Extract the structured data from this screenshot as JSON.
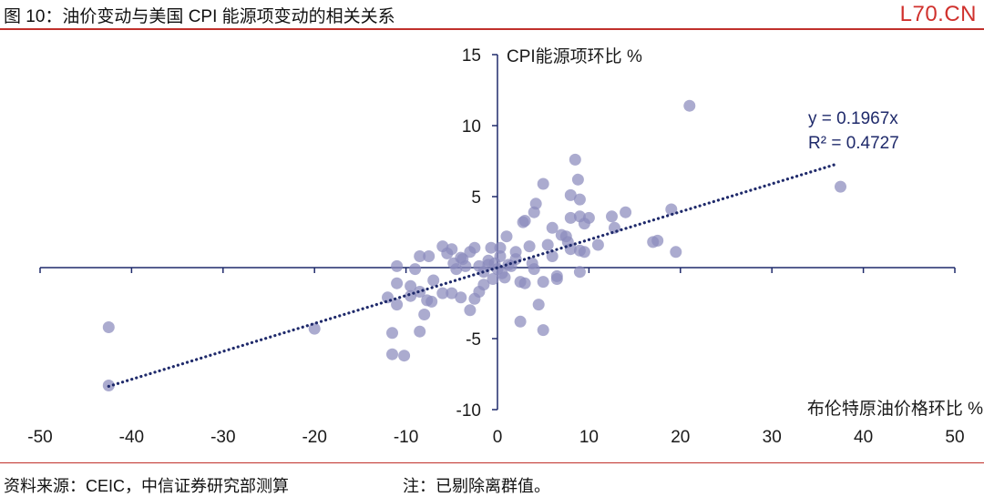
{
  "header": {
    "title": "图 10：油价变动与美国 CPI 能源项变动的相关关系",
    "logo": "L70.CN"
  },
  "footer": {
    "source": "资料来源：CEIC，中信证券研究部测算",
    "note": "注：已剔除离群值。"
  },
  "colors": {
    "point": "#8b8bbd",
    "trend": "#1f2a6b",
    "axis": "#1f2a6b",
    "rule": "#c0302b"
  },
  "chart_data": {
    "type": "scatter",
    "xlabel": "布伦特原油价格环比 %",
    "ylabel": "CPI能源项环比 %",
    "xlim": [
      -50,
      50
    ],
    "ylim": [
      -10,
      15
    ],
    "xticks": [
      "-50",
      "-40",
      "-30",
      "-20",
      "-10",
      "0",
      "10",
      "20",
      "30",
      "40",
      "50"
    ],
    "yticks": [
      "-10",
      "-5",
      "5",
      "10",
      "15"
    ],
    "trendline": {
      "equation": "y = 0.1967x",
      "r2": "R² = 0.4727",
      "slope": 0.1967,
      "x_range": [
        -42.5,
        37
      ]
    },
    "points": [
      [
        -42.5,
        -4.2
      ],
      [
        -42.5,
        -8.3
      ],
      [
        -20,
        -4.3
      ],
      [
        -11.5,
        -4.6
      ],
      [
        -11.5,
        -6.1
      ],
      [
        -10.2,
        -6.2
      ],
      [
        -8.5,
        -4.5
      ],
      [
        -8,
        -3.3
      ],
      [
        -12,
        -2.1
      ],
      [
        -11,
        -2.6
      ],
      [
        -9.5,
        -2
      ],
      [
        -8.5,
        -1.7
      ],
      [
        -7.7,
        -2.3
      ],
      [
        -7.2,
        -2.4
      ],
      [
        -11,
        -1.1
      ],
      [
        -9.5,
        -1.3
      ],
      [
        -7,
        -0.9
      ],
      [
        -6,
        -1.8
      ],
      [
        -5,
        -1.8
      ],
      [
        -4,
        -2.1
      ],
      [
        -3,
        -3
      ],
      [
        -2.5,
        -2.2
      ],
      [
        -2,
        -1.7
      ],
      [
        -1.5,
        -1.2
      ],
      [
        -11,
        0.1
      ],
      [
        -9,
        -0.1
      ],
      [
        -8.5,
        0.8
      ],
      [
        -7.5,
        0.8
      ],
      [
        -6,
        1.5
      ],
      [
        -5.5,
        1
      ],
      [
        -5,
        1.3
      ],
      [
        -4.8,
        0.3
      ],
      [
        -4.5,
        -0.1
      ],
      [
        -4,
        0.7
      ],
      [
        -3.5,
        0.1
      ],
      [
        -3,
        1.1
      ],
      [
        -2.5,
        1.4
      ],
      [
        -2,
        0.1
      ],
      [
        -1.5,
        -0.3
      ],
      [
        -1,
        0.2
      ],
      [
        -0.7,
        1.4
      ],
      [
        -0.3,
        0.3
      ],
      [
        0,
        -0.1
      ],
      [
        0.5,
        -0.4
      ],
      [
        0.8,
        -0.7
      ],
      [
        1.2,
        0.2
      ],
      [
        -0.5,
        -0.8
      ],
      [
        0.3,
        0.8
      ],
      [
        0.3,
        1.4
      ],
      [
        1.5,
        0.1
      ],
      [
        2,
        0.6
      ],
      [
        2.5,
        -1
      ],
      [
        2.8,
        3.2
      ],
      [
        3,
        -1.1
      ],
      [
        3,
        3.3
      ],
      [
        3.5,
        1.5
      ],
      [
        3.8,
        0.3
      ],
      [
        4,
        -0.1
      ],
      [
        4,
        3.9
      ],
      [
        4.5,
        -2.6
      ],
      [
        2.5,
        -3.8
      ],
      [
        5,
        -4.4
      ],
      [
        5,
        -1
      ],
      [
        5.5,
        1.6
      ],
      [
        5,
        5.9
      ],
      [
        6,
        2.8
      ],
      [
        6.5,
        -0.6
      ],
      [
        6.5,
        -0.8
      ],
      [
        7,
        2.3
      ],
      [
        7.5,
        2.2
      ],
      [
        7.7,
        1.8
      ],
      [
        8,
        1.3
      ],
      [
        8,
        3.5
      ],
      [
        8,
        5.1
      ],
      [
        8.5,
        7.6
      ],
      [
        8.8,
        6.2
      ],
      [
        9,
        4.8
      ],
      [
        9,
        3.6
      ],
      [
        9,
        1.2
      ],
      [
        9,
        -0.3
      ],
      [
        9.5,
        1.1
      ],
      [
        9.5,
        3.1
      ],
      [
        10,
        3.5
      ],
      [
        11,
        1.6
      ],
      [
        12.5,
        3.6
      ],
      [
        12.8,
        2.8
      ],
      [
        14,
        3.9
      ],
      [
        4.2,
        4.5
      ],
      [
        6,
        0.8
      ],
      [
        1,
        2.2
      ],
      [
        2,
        1.1
      ],
      [
        -1,
        0.5
      ],
      [
        -3.8,
        0.6
      ],
      [
        17,
        1.8
      ],
      [
        17.5,
        1.9
      ],
      [
        19,
        4.1
      ],
      [
        19.5,
        1.1
      ],
      [
        21,
        11.4
      ],
      [
        37.5,
        5.7
      ]
    ]
  }
}
